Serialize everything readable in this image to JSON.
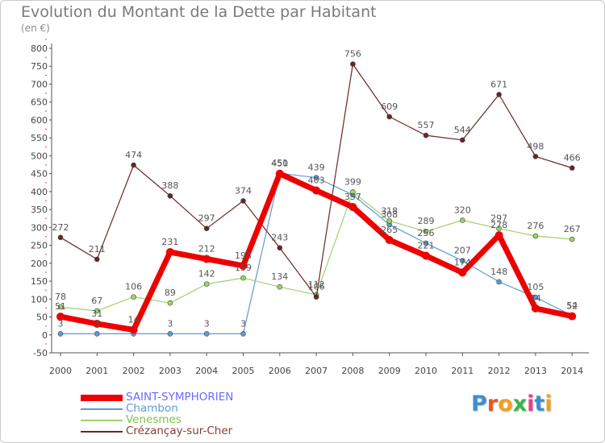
{
  "header": {
    "title": "Evolution du Montant de la Dette par Habitant",
    "unit": "(en €)"
  },
  "logo": {
    "letters": [
      "P",
      "r",
      "o",
      "x",
      "i",
      "t",
      "i"
    ],
    "colors": [
      "#3a8fd6",
      "#e8581f",
      "#f0a020",
      "#39b54a",
      "#e83e8c",
      "#3a8fd6",
      "#f0a020"
    ]
  },
  "chart_data": {
    "type": "line",
    "title": "Evolution du Montant de la Dette par Habitant",
    "ylabel": "(en €)",
    "xlabel": "",
    "ylim": [
      -50,
      800
    ],
    "yticks": [
      -50,
      0,
      50,
      100,
      150,
      200,
      250,
      300,
      350,
      400,
      450,
      500,
      550,
      600,
      650,
      700,
      750,
      800
    ],
    "x": [
      "2000",
      "2001",
      "2002",
      "2003",
      "2004",
      "2005",
      "2006",
      "2007",
      "2008",
      "2009",
      "2010",
      "2011",
      "2012",
      "2013",
      "2014"
    ],
    "grid": false,
    "legend_position": "bottom-left",
    "series": [
      {
        "name": "SAINT-SYMPHORIEN",
        "color": "#ee0000",
        "values": [
          51,
          31,
          14,
          231,
          212,
          193,
          450,
          403,
          357,
          265,
          221,
          174,
          278,
          74,
          52
        ],
        "labels": [
          "51",
          "31",
          "14",
          "231",
          "212",
          "193",
          "450",
          "403",
          "357",
          "265",
          "221",
          "174",
          "278",
          "74",
          "52"
        ]
      },
      {
        "name": "Chambon",
        "color": "#5b9bd5",
        "values": [
          3,
          3,
          3,
          3,
          3,
          3,
          451,
          439,
          391,
          308,
          256,
          207,
          148,
          105,
          54
        ],
        "labels": [
          "3",
          "3",
          "",
          "3",
          "3",
          "3",
          "451",
          "439",
          "",
          "308",
          "256",
          "207",
          "148",
          "105",
          "54"
        ]
      },
      {
        "name": "Venesmes",
        "color": "#9fd36b",
        "values": [
          78,
          67,
          106,
          89,
          142,
          159,
          134,
          112,
          399,
          318,
          289,
          320,
          297,
          276,
          267
        ],
        "labels": [
          "78",
          "67",
          "106",
          "89",
          "142",
          "159",
          "134",
          "112",
          "399",
          "318",
          "289",
          "320",
          "297",
          "276",
          "267"
        ]
      },
      {
        "name": "Crézançay-sur-Cher",
        "color": "#6e2424",
        "values": [
          272,
          211,
          474,
          388,
          297,
          374,
          243,
          106,
          756,
          609,
          557,
          544,
          671,
          498,
          466
        ],
        "labels": [
          "272",
          "211",
          "474",
          "388",
          "297",
          "374",
          "243",
          "106",
          "756",
          "609",
          "557",
          "544",
          "671",
          "498",
          "466"
        ]
      }
    ]
  }
}
